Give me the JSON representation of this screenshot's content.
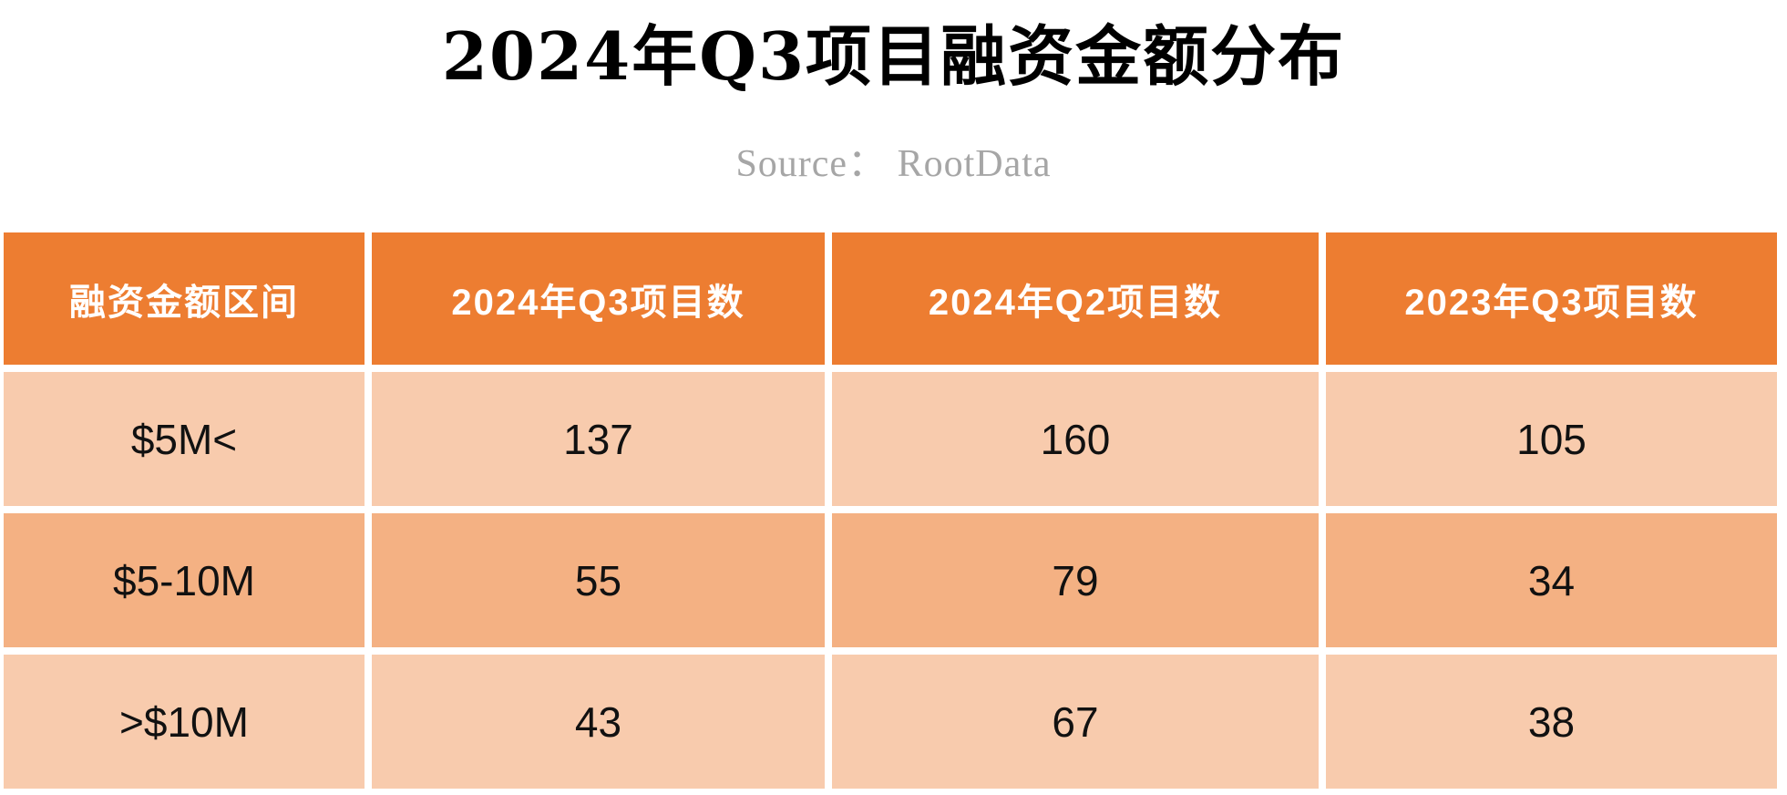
{
  "page": {
    "title": "2024年Q3项目融资金额分布",
    "source_line": "Source：  RootData"
  },
  "chart_data": {
    "type": "table",
    "title": "2024年Q3项目融资金额分布",
    "source": "RootData",
    "columns": [
      "融资金额区间",
      "2024年Q3项目数",
      "2024年Q2项目数",
      "2023年Q3项目数"
    ],
    "rows": [
      {
        "label": "$5M<",
        "values": [
          137,
          160,
          105
        ]
      },
      {
        "label": "$5-10M",
        "values": [
          55,
          79,
          34
        ]
      },
      {
        "label": ">$10M",
        "values": [
          43,
          67,
          38
        ]
      }
    ],
    "layout_hints": {
      "header_style": "solid orange band, white text",
      "body_style": "alternating peach rows, centered black values, white 8px gridlines"
    }
  },
  "colors": {
    "background": "#FFFFFF",
    "header_bg": "#ED7D31",
    "row_light_bg": "#F8CBAD",
    "row_medium_bg": "#F4B183",
    "title_text": "#000000",
    "header_text": "#FFFFFF",
    "cell_text": "#111111",
    "source_text": "#A6A6A6"
  }
}
